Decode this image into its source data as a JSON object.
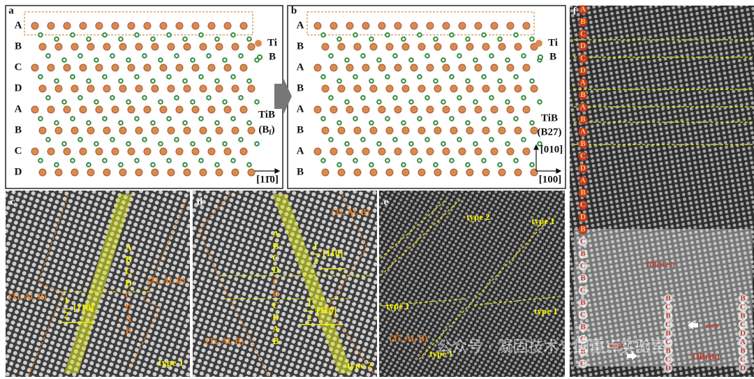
{
  "panels": {
    "a": {
      "label": "a",
      "layers": [
        "A",
        "B",
        "C",
        "D",
        "A",
        "B",
        "C",
        "D"
      ],
      "legend": [
        "Ti",
        "B"
      ],
      "phase": "TiB",
      "structure": [
        "(B",
        "f",
        ")"
      ],
      "axis": "[11̄0]"
    },
    "b": {
      "label": "b",
      "layers": [
        "A",
        "B",
        "A",
        "B",
        "A",
        "B",
        "A",
        "B"
      ],
      "legend": [
        "Ti",
        "B"
      ],
      "phase": "TiB",
      "structure": "(B27)",
      "axis_vertical": "[010]",
      "axis_horizontal": "[100]"
    },
    "c": {
      "label": "c",
      "stacking": [
        "A",
        "B",
        "C",
        "D",
        "C",
        "D",
        "A",
        "B"
      ],
      "fraction": {
        "numerator": "1",
        "denominator": "2",
        "vector": "[11̄0]"
      },
      "region_left": "(Ti, Al, B)",
      "region_right": "(Ti, Al, B)",
      "type": "type 1"
    },
    "d": {
      "label": "d",
      "stacking": [
        "A",
        "B",
        "C",
        "D",
        "C",
        "D",
        "C",
        "D",
        "A",
        "B"
      ],
      "fraction_top": {
        "numerator": "1",
        "denominator": "2",
        "vector": "[11̄0]"
      },
      "fraction_bottom": {
        "numerator": "1",
        "denominator": "2",
        "vector": "[1̄10]"
      },
      "region_top": "(Ti, Al, B)",
      "region_bottom": "(Ti, Al, B)",
      "type": "type 2"
    },
    "e": {
      "label": "e",
      "types": [
        "type 2",
        "type 1",
        "type 1",
        "type 1",
        "type 1"
      ],
      "region": "(Ti, Al, B)"
    },
    "f": {
      "label": "f",
      "stacking_left": [
        "A",
        "B",
        "C",
        "D",
        "C",
        "D",
        "A",
        "B",
        "A",
        "B",
        "A",
        "B",
        "C",
        "D",
        "A",
        "B",
        "C",
        "D",
        "B",
        "C",
        "B",
        "C",
        "B",
        "C",
        "B",
        "C",
        "B",
        "C",
        "B",
        "C"
      ],
      "stacking_mid": [
        "B",
        "C",
        "B",
        "C",
        "B",
        "C",
        "B",
        "C",
        "D"
      ],
      "stacking_right": [
        "B",
        "C",
        "B",
        "C",
        "D",
        "A",
        "B",
        "C",
        "D"
      ],
      "phase_top": "TiB(B27)",
      "step_right": "step",
      "step_left": "step",
      "phase_bottom": [
        "TiB(B",
        "f",
        ")"
      ]
    }
  },
  "watermark": "公众号 · 凝固技术全国重点实验室"
}
